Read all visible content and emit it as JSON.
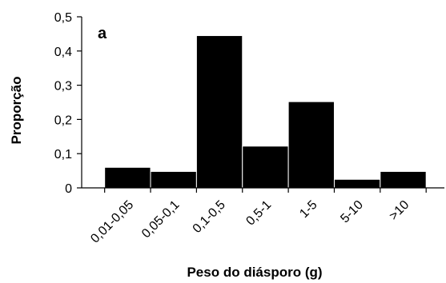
{
  "chart_data": {
    "type": "bar",
    "panel_label": "a",
    "categories": [
      "0,01-0,05",
      "0,05-0,1",
      "0,1-0,5",
      "0,5-1",
      "1-5",
      "5-10",
      ">10"
    ],
    "values": [
      0.06,
      0.048,
      0.445,
      0.122,
      0.252,
      0.025,
      0.048
    ],
    "y_ticks": [
      "0",
      "0,1",
      "0,2",
      "0,3",
      "0,4",
      "0,5"
    ],
    "ylim": [
      0,
      0.5
    ],
    "xlabel": "Peso do diásporo (g)",
    "ylabel": "Proporção",
    "bar_color": "#000000",
    "grid": false,
    "legend": "none"
  }
}
